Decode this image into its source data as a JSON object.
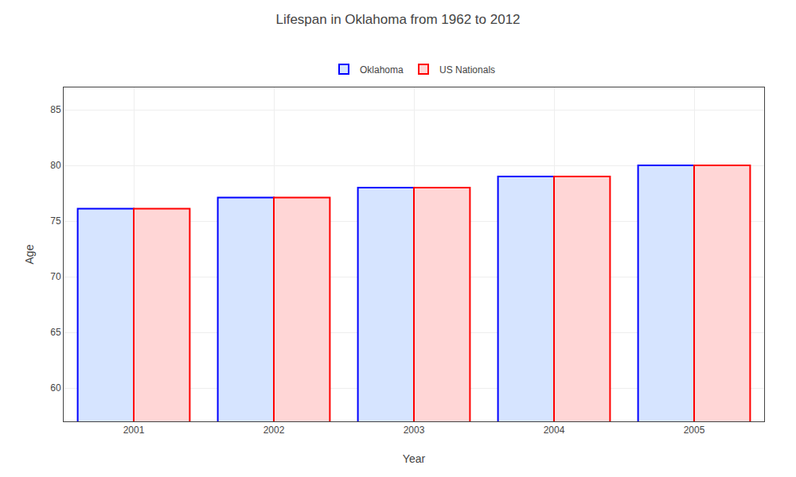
{
  "chart_data": {
    "type": "bar",
    "title": "Lifespan in Oklahoma from 1962 to 2012",
    "xlabel": "Year",
    "ylabel": "Age",
    "categories": [
      "2001",
      "2002",
      "2003",
      "2004",
      "2005"
    ],
    "series": [
      {
        "name": "Oklahoma",
        "color": "#d6e4ff",
        "values": [
          76.1,
          77.1,
          78.0,
          79.0,
          80.0
        ]
      },
      {
        "name": "US Nationals",
        "color": "#ffd6d6",
        "values": [
          76.1,
          77.1,
          78.0,
          79.0,
          80.0
        ]
      }
    ],
    "ylim": [
      57,
      87
    ],
    "yticks": [
      60,
      65,
      70,
      75,
      80,
      85
    ],
    "grid": true,
    "legend": "top"
  }
}
